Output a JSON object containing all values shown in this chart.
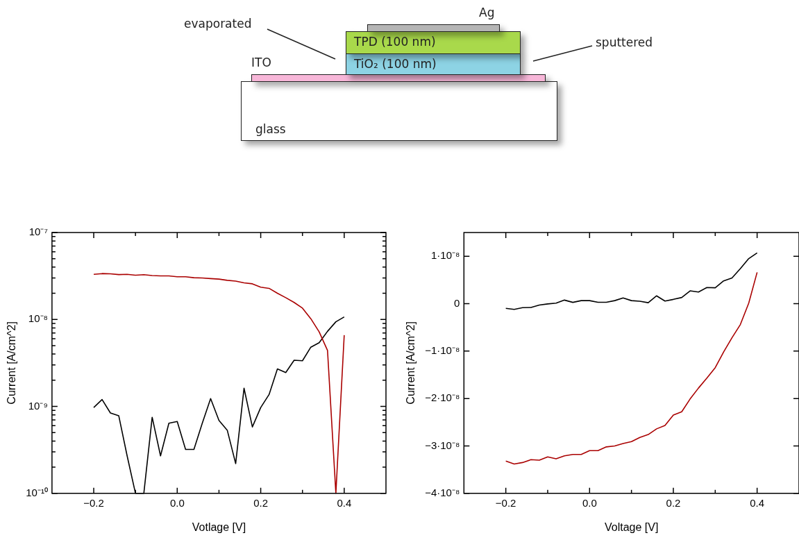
{
  "chart_data": [
    {
      "type": "other",
      "annotations": [
        "Ag",
        "TPD (100 nm)",
        "TiO₂ (100 nm)",
        "ITO",
        "glass",
        "evaporated",
        "sputtered"
      ]
    },
    {
      "type": "line",
      "xlabel": "Votlage [V]",
      "ylabel": "Current [A/cm^2]",
      "log": "y",
      "xlim": [
        -0.3,
        0.5
      ],
      "xticks": [
        {
          "value": -0.2,
          "label": "−0.2"
        },
        {
          "value": -0.1,
          "label": null
        },
        {
          "value": 0,
          "label": "0.0"
        },
        {
          "value": 0.1,
          "label": null
        },
        {
          "value": 0.2,
          "label": "0.2"
        },
        {
          "value": 0.3,
          "label": null
        },
        {
          "value": 0.4,
          "label": "0.4"
        }
      ],
      "ylim": [
        1e-10,
        1e-07
      ],
      "yticks": [
        {
          "value": 1e-10,
          "label": "10⁻¹⁰"
        },
        {
          "value": 2e-10,
          "label": null
        },
        {
          "value": 3e-10,
          "label": null
        },
        {
          "value": 4e-10,
          "label": null
        },
        {
          "value": 5e-10,
          "label": null
        },
        {
          "value": 6e-10,
          "label": null
        },
        {
          "value": 7e-10,
          "label": null
        },
        {
          "value": 8e-10,
          "label": null
        },
        {
          "value": 9e-10,
          "label": null
        },
        {
          "value": 1e-09,
          "label": "10⁻⁹"
        },
        {
          "value": 2e-09,
          "label": null
        },
        {
          "value": 3e-09,
          "label": null
        },
        {
          "value": 4e-09,
          "label": null
        },
        {
          "value": 5e-09,
          "label": null
        },
        {
          "value": 6e-09,
          "label": null
        },
        {
          "value": 7e-09,
          "label": null
        },
        {
          "value": 8e-09,
          "label": null
        },
        {
          "value": 9e-09,
          "label": null
        },
        {
          "value": 1e-08,
          "label": "10⁻⁸"
        },
        {
          "value": 2e-08,
          "label": null
        },
        {
          "value": 3e-08,
          "label": null
        },
        {
          "value": 4e-08,
          "label": null
        },
        {
          "value": 5e-08,
          "label": null
        },
        {
          "value": 6e-08,
          "label": null
        },
        {
          "value": 7e-08,
          "label": null
        },
        {
          "value": 8e-08,
          "label": null
        },
        {
          "value": 9e-08,
          "label": null
        },
        {
          "value": 1e-07,
          "label": "10⁻⁷"
        }
      ],
      "x": [
        -0.2,
        -0.18,
        -0.16,
        -0.14,
        -0.12,
        -0.1,
        -0.08,
        -0.06,
        -0.04,
        -0.02,
        0,
        0.02,
        0.04,
        0.06,
        0.08,
        0.1,
        0.12,
        0.14,
        0.16,
        0.18,
        0.2,
        0.22,
        0.24,
        0.26,
        0.28,
        0.3,
        0.32,
        0.34,
        0.36,
        0.38,
        0.4
      ],
      "series": [
        {
          "color": "#aa0000",
          "values": [
            3.3e-08,
            3.37e-08,
            3.35e-08,
            3.28e-08,
            3.3e-08,
            3.23e-08,
            3.27e-08,
            3.2e-08,
            3.17e-08,
            3.17e-08,
            3.1e-08,
            3.1e-08,
            3.02e-08,
            3e-08,
            2.95e-08,
            2.91e-08,
            2.82e-08,
            2.76e-08,
            2.64e-08,
            2.57e-08,
            2.35e-08,
            2.28e-08,
            2e-08,
            1.78e-08,
            1.57e-08,
            1.35e-08,
            1.02e-08,
            7.2e-09,
            4.4e-09,
            1e-10,
            6.6e-09
          ]
        },
        {
          "color": "#000000",
          "values": [
            9.7e-10,
            1.2e-09,
            8.4e-10,
            7.8e-10,
            2.7e-10,
            1e-10,
            1e-10,
            7.5e-10,
            2.7e-10,
            6.4e-10,
            6.7e-10,
            3.2e-10,
            3.2e-10,
            6.4e-10,
            1.23e-09,
            6.9e-10,
            5.3e-10,
            2.2e-10,
            1.62e-09,
            5.8e-10,
            9.7e-10,
            1.37e-09,
            2.7e-09,
            2.45e-09,
            3.4e-09,
            3.35e-09,
            4.8e-09,
            5.4e-09,
            7.3e-09,
            9.4e-09,
            1.07e-08
          ]
        }
      ]
    },
    {
      "type": "line",
      "xlabel": "Voltage [V]",
      "ylabel": "Current [A/cm^2]",
      "xlim": [
        -0.3,
        0.5
      ],
      "xticks": [
        {
          "value": -0.2,
          "label": "−0.2"
        },
        {
          "value": -0.1,
          "label": null
        },
        {
          "value": 0,
          "label": "0.0"
        },
        {
          "value": 0.1,
          "label": null
        },
        {
          "value": 0.2,
          "label": "0.2"
        },
        {
          "value": 0.3,
          "label": null
        },
        {
          "value": 0.4,
          "label": "0.4"
        }
      ],
      "ylim": [
        -4e-08,
        1.5e-08
      ],
      "yticks": [
        {
          "value": -4e-08,
          "label": "−4·10⁻⁸"
        },
        {
          "value": -3e-08,
          "label": "−3·10⁻⁸"
        },
        {
          "value": -2e-08,
          "label": "−2·10⁻⁸"
        },
        {
          "value": -1e-08,
          "label": "−1·10⁻⁸"
        },
        {
          "value": 0,
          "label": "0"
        },
        {
          "value": 1e-08,
          "label": "1·10⁻⁸"
        }
      ],
      "x": [
        -0.2,
        -0.18,
        -0.16,
        -0.14,
        -0.12,
        -0.1,
        -0.08,
        -0.06,
        -0.04,
        -0.02,
        0,
        0.02,
        0.04,
        0.06,
        0.08,
        0.1,
        0.12,
        0.14,
        0.16,
        0.18,
        0.2,
        0.22,
        0.24,
        0.26,
        0.28,
        0.3,
        0.32,
        0.34,
        0.36,
        0.38,
        0.4
      ],
      "series": [
        {
          "color": "#aa0000",
          "values": [
            -3.32e-08,
            -3.38e-08,
            -3.35e-08,
            -3.29e-08,
            -3.3e-08,
            -3.23e-08,
            -3.27e-08,
            -3.21e-08,
            -3.18e-08,
            -3.18e-08,
            -3.1e-08,
            -3.1e-08,
            -3.02e-08,
            -3e-08,
            -2.95e-08,
            -2.91e-08,
            -2.82e-08,
            -2.76e-08,
            -2.64e-08,
            -2.57e-08,
            -2.35e-08,
            -2.28e-08,
            -2.01e-08,
            -1.78e-08,
            -1.57e-08,
            -1.35e-08,
            -1.02e-08,
            -7.2e-09,
            -4.4e-09,
            1e-10,
            6.6e-09
          ]
        },
        {
          "color": "#000000",
          "values": [
            -1e-09,
            -1.2e-09,
            -8.5e-10,
            -8e-10,
            -3e-10,
            -5e-11,
            1e-10,
            7.5e-10,
            2.7e-10,
            6.4e-10,
            6.4e-10,
            3e-10,
            3e-10,
            6.4e-10,
            1.2e-09,
            6.4e-10,
            5e-10,
            2e-10,
            1.65e-09,
            5.5e-10,
            9e-10,
            1.3e-09,
            2.7e-09,
            2.45e-09,
            3.4e-09,
            3.35e-09,
            4.8e-09,
            5.4e-09,
            7.4e-09,
            9.5e-09,
            1.07e-08
          ]
        }
      ]
    }
  ]
}
